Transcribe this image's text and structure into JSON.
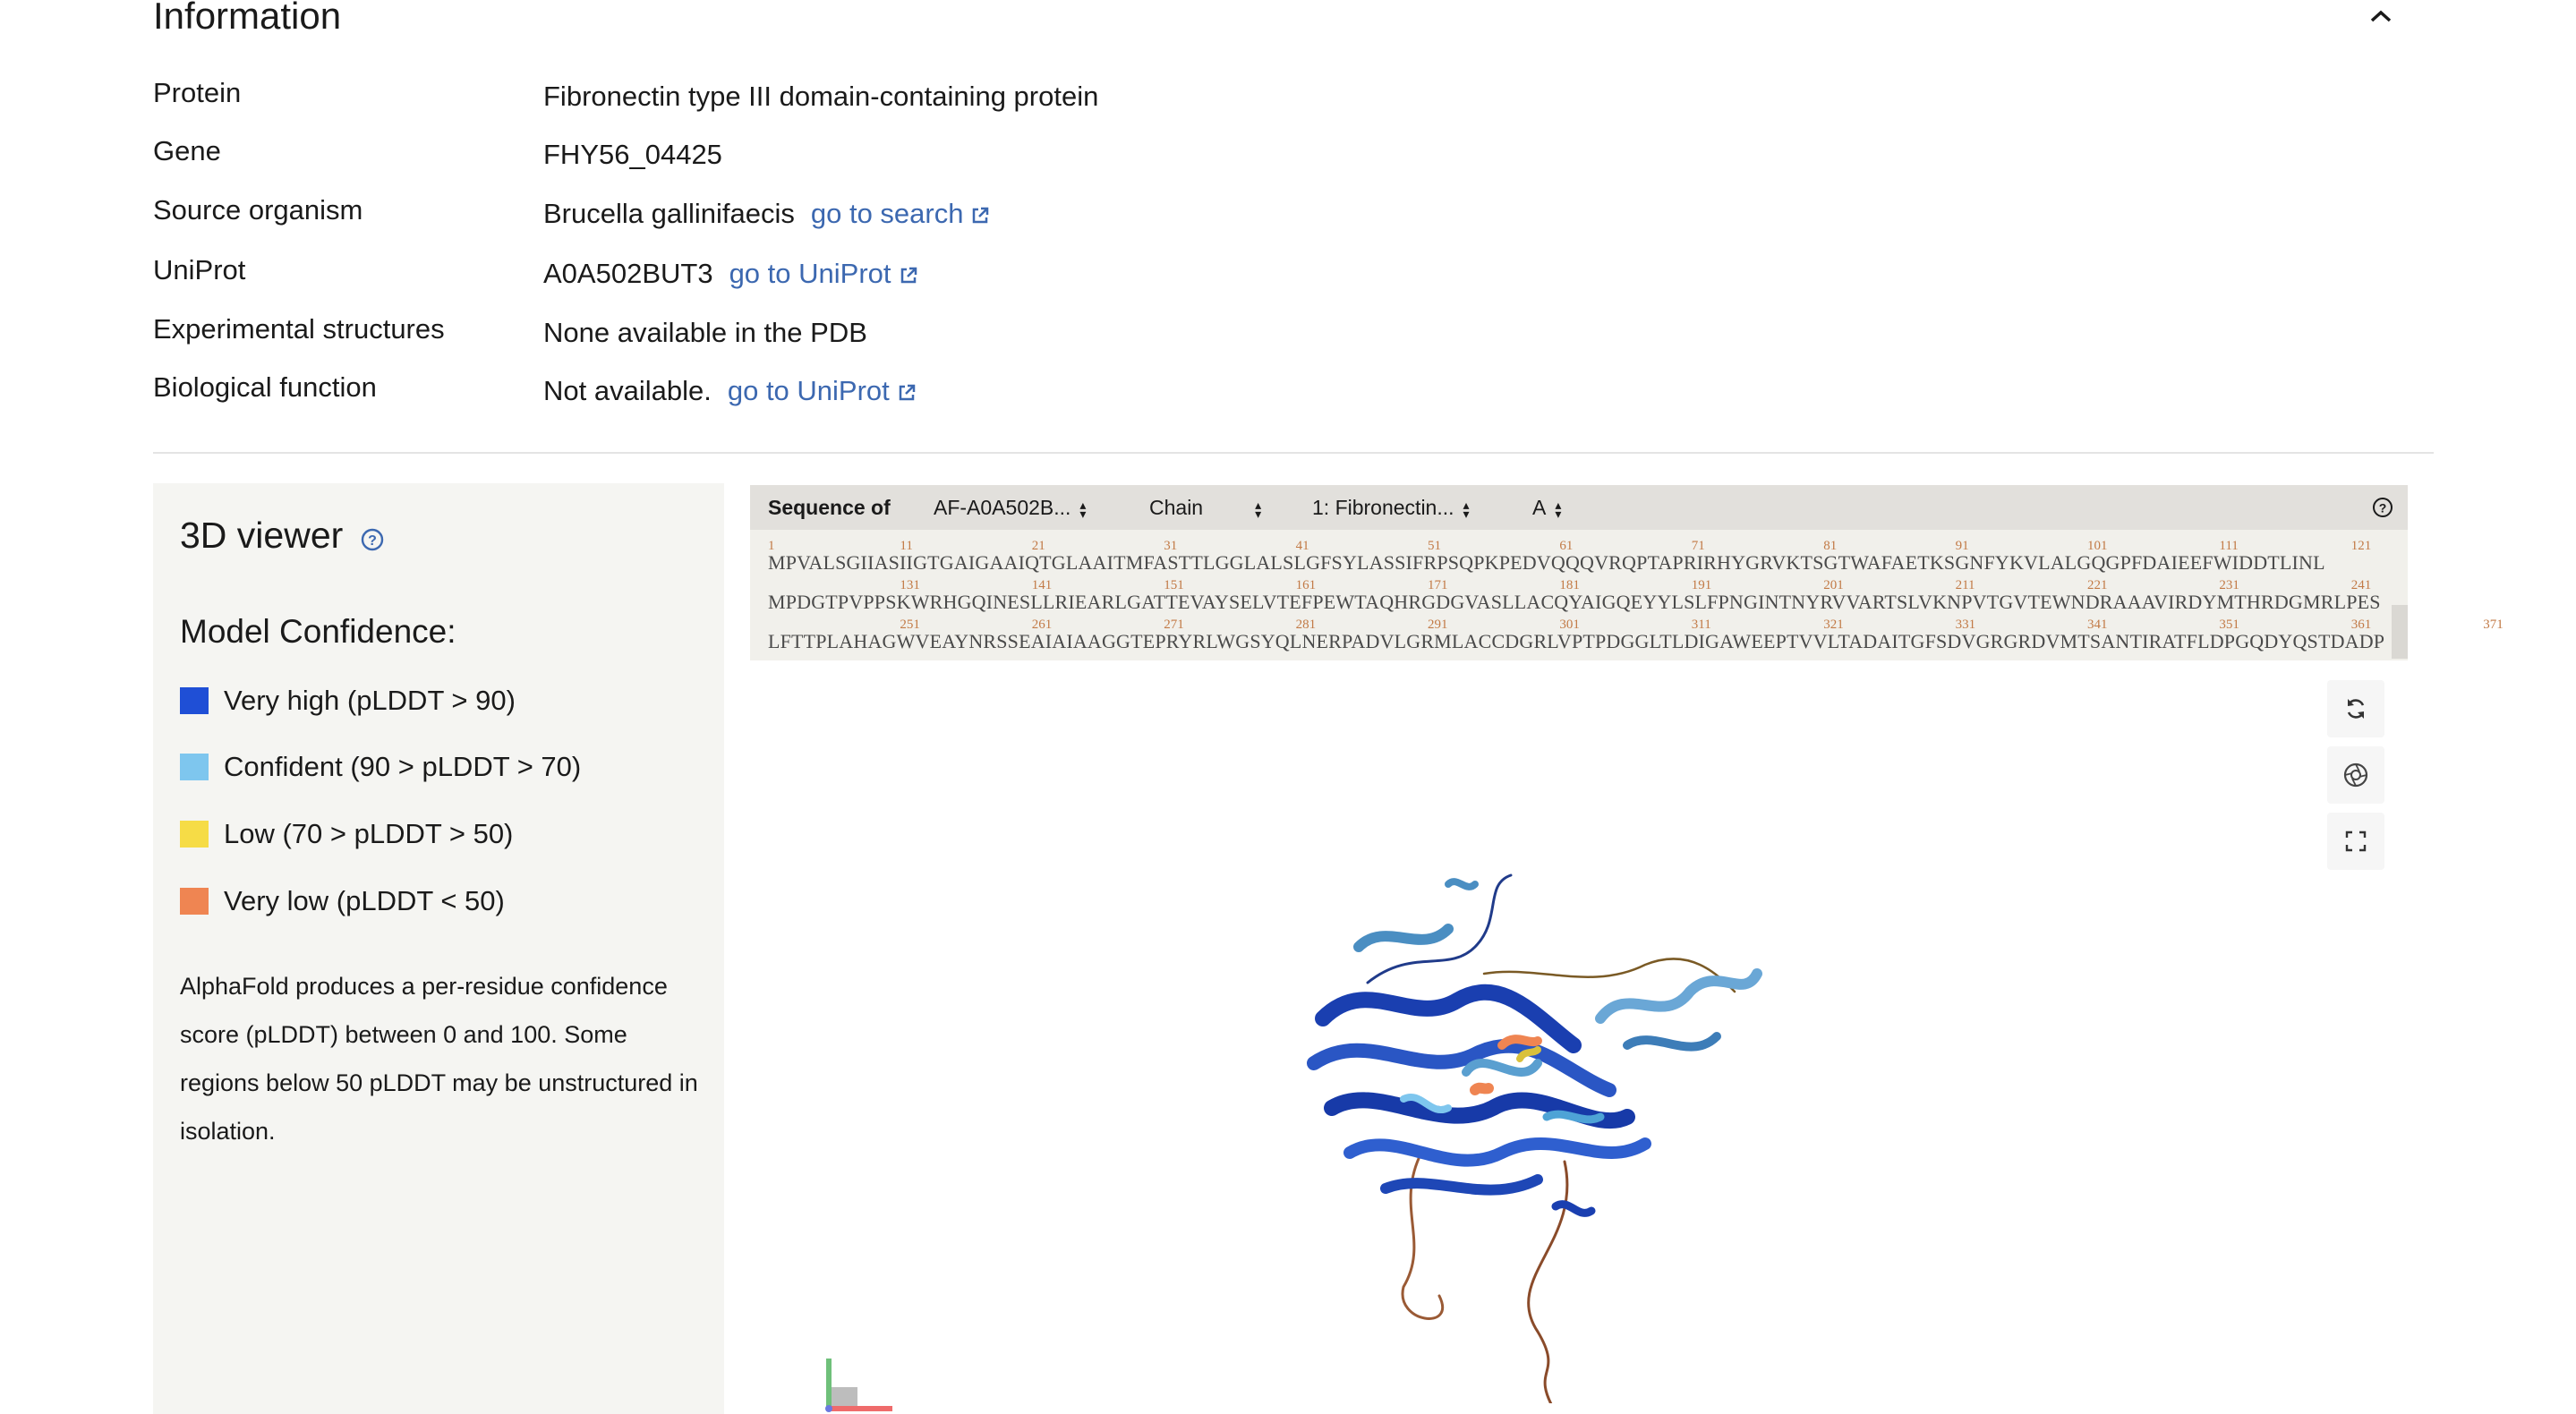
{
  "information": {
    "title": "Information",
    "rows": [
      {
        "label": "Protein",
        "value": "Fibronectin type III domain-containing protein"
      },
      {
        "label": "Gene",
        "value": "FHY56_04425"
      },
      {
        "label": "Source organism",
        "value": "Brucella gallinifaecis",
        "link": "go to search"
      },
      {
        "label": "UniProt",
        "value": "A0A502BUT3",
        "link": "go to UniProt"
      },
      {
        "label": "Experimental structures",
        "value": "None available in the PDB"
      },
      {
        "label": "Biological function",
        "value": "Not available.",
        "link": "go to UniProt"
      }
    ]
  },
  "viewer_panel": {
    "title": "3D viewer",
    "confidence_title": "Model Confidence:",
    "legend": [
      {
        "label": "Very high (pLDDT > 90)",
        "color": "#1f4fd6"
      },
      {
        "label": "Confident (90 > pLDDT > 70)",
        "color": "#7ec6ee"
      },
      {
        "label": "Low (70 > pLDDT > 50)",
        "color": "#f6dc46"
      },
      {
        "label": "Very low (pLDDT < 50)",
        "color": "#ef8552"
      }
    ],
    "note": "AlphaFold produces a per-residue confidence score (pLDDT) between 0 and 100. Some regions below 50 pLDDT may be unstructured in isolation."
  },
  "sequence": {
    "label": "Sequence of",
    "entry_select": "AF-A0A502B...",
    "chain_label": "Chain",
    "entity_select": "1: Fibronectin...",
    "chain_select": "A",
    "lines": [
      {
        "numbers": [
          "1",
          "11",
          "21",
          "31",
          "41",
          "51",
          "61",
          "71",
          "81",
          "91",
          "101",
          "111",
          "121"
        ],
        "residues": "MPVALSGIIASIIGTGAIGAAIQTGLAAITMFASTTLGGLALSLGFSYLASSIFRPSQPKPEDVQQQVRQPTAPRIRHYGRVKTSGTWAFAETKSGNFYKVLALGQGPFDAIEEFWIDDTLINL"
      },
      {
        "numbers": [
          "131",
          "141",
          "151",
          "161",
          "171",
          "181",
          "191",
          "201",
          "211",
          "221",
          "231",
          "241"
        ],
        "residues": "MPDGTPVPPSKWRHGQINESLLRIEARLGATTEVAYSELVTEFPEWTAQHRGDGVASLLACQYAIGQEYYLSLFPNGINTNYRVVARTSLVKNPVTGVTEWNDRAAAVIRDYMTHRDGMRLPES"
      },
      {
        "numbers": [
          "251",
          "261",
          "271",
          "281",
          "291",
          "301",
          "311",
          "321",
          "331",
          "341",
          "351",
          "361",
          "371"
        ],
        "residues": "LFTTPLAHAGWVEAYNRSSEAIAIAAGGTEPRYRLWGSYQLNERPADVLGRMLACCDGRLVPTPDGGLTLDIGAWEEPTVVLTADAITGFSDVGRGRDVMTSANTIRATFLDPGQDYQSTDADP"
      }
    ]
  },
  "colors": {
    "link": "#3c68b0",
    "very_high": "#1f4fd6",
    "confident": "#7ec6ee",
    "low": "#f6dc46",
    "very_low": "#ef8552"
  },
  "icons": [
    "chevron-up-icon",
    "external-link-icon",
    "help-icon",
    "reset-icon",
    "screenshot-icon",
    "fullscreen-icon",
    "axes-icon"
  ]
}
